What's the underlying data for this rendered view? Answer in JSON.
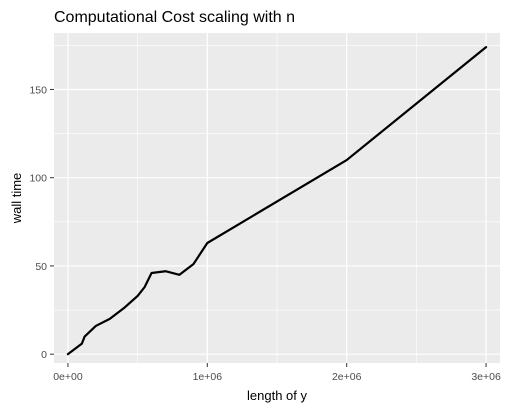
{
  "chart_data": {
    "type": "line",
    "title": "Computational Cost scaling with n",
    "xlabel": "length of y",
    "ylabel": "wall time",
    "xlim": [
      -100000,
      3100000
    ],
    "ylim": [
      -5,
      182
    ],
    "x_ticks": [
      {
        "value": 0,
        "label": "0e+00"
      },
      {
        "value": 1000000,
        "label": "1e+06"
      },
      {
        "value": 2000000,
        "label": "2e+06"
      },
      {
        "value": 3000000,
        "label": "3e+06"
      }
    ],
    "y_ticks": [
      {
        "value": 0,
        "label": "0"
      },
      {
        "value": 50,
        "label": "50"
      },
      {
        "value": 100,
        "label": "100"
      },
      {
        "value": 150,
        "label": "150"
      }
    ],
    "grid": true,
    "legend": "none",
    "series": [
      {
        "color": "#000000",
        "x": [
          0,
          50000,
          100000,
          120000,
          200000,
          300000,
          400000,
          500000,
          550000,
          600000,
          700000,
          800000,
          900000,
          1000000,
          2000000,
          3000000
        ],
        "y": [
          0,
          3,
          6,
          10,
          16,
          20,
          26,
          33,
          38,
          46,
          47,
          45,
          51,
          63,
          110,
          174
        ]
      }
    ],
    "colors": {
      "panel_background": "#ebebeb",
      "grid_major": "#ffffff",
      "tick_label": "#4d4d4d",
      "line": "#000000"
    }
  }
}
